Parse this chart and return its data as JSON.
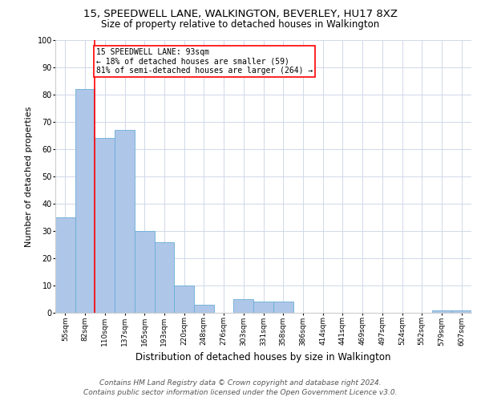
{
  "title": "15, SPEEDWELL LANE, WALKINGTON, BEVERLEY, HU17 8XZ",
  "subtitle": "Size of property relative to detached houses in Walkington",
  "xlabel": "Distribution of detached houses by size in Walkington",
  "ylabel": "Number of detached properties",
  "categories": [
    "55sqm",
    "82sqm",
    "110sqm",
    "137sqm",
    "165sqm",
    "193sqm",
    "220sqm",
    "248sqm",
    "276sqm",
    "303sqm",
    "331sqm",
    "358sqm",
    "386sqm",
    "414sqm",
    "441sqm",
    "469sqm",
    "497sqm",
    "524sqm",
    "552sqm",
    "579sqm",
    "607sqm"
  ],
  "values": [
    35,
    82,
    64,
    67,
    30,
    26,
    10,
    3,
    0,
    5,
    4,
    4,
    0,
    0,
    0,
    0,
    0,
    0,
    0,
    1,
    1
  ],
  "bar_color": "#aec6e8",
  "bar_edge_color": "#6aaed6",
  "vline_x": 1.5,
  "vline_color": "red",
  "annotation_text": "15 SPEEDWELL LANE: 93sqm\n← 18% of detached houses are smaller (59)\n81% of semi-detached houses are larger (264) →",
  "annotation_box_color": "white",
  "annotation_box_edge_color": "red",
  "ylim": [
    0,
    100
  ],
  "yticks": [
    0,
    10,
    20,
    30,
    40,
    50,
    60,
    70,
    80,
    90,
    100
  ],
  "footnote": "Contains HM Land Registry data © Crown copyright and database right 2024.\nContains public sector information licensed under the Open Government Licence v3.0.",
  "title_fontsize": 9.5,
  "subtitle_fontsize": 8.5,
  "xlabel_fontsize": 8.5,
  "ylabel_fontsize": 8,
  "annotation_fontsize": 7,
  "tick_fontsize": 6.5,
  "footnote_fontsize": 6.5,
  "background_color": "white",
  "grid_color": "#d0d8e8"
}
